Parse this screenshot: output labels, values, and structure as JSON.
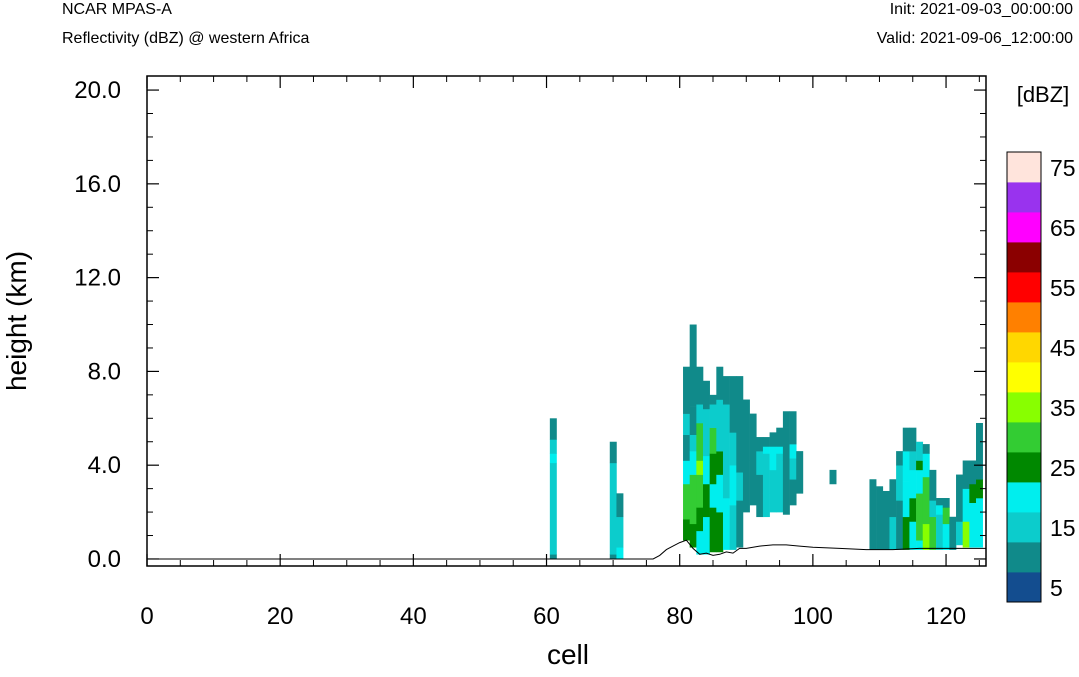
{
  "header": {
    "left_title": "NCAR MPAS-A",
    "left_subtitle": "Reflectivity (dBZ) @ western Africa",
    "right_init": "Init: 2021-09-03_00:00:00",
    "right_valid": "Valid: 2021-09-06_12:00:00"
  },
  "chart_data": {
    "type": "heatmap",
    "xlabel": "cell",
    "ylabel": "height (km)",
    "xlim": [
      0,
      126
    ],
    "ylim": [
      -0.3,
      20.6
    ],
    "xticks": [
      "0",
      "20",
      "40",
      "60",
      "80",
      "100",
      "120"
    ],
    "yticks": [
      "0.0",
      "4.0",
      "8.0",
      "12.0",
      "16.0",
      "20.0"
    ],
    "colorbar": {
      "title": "[dBZ]",
      "levels": [
        0,
        10,
        15,
        20,
        25,
        30,
        35,
        40,
        45,
        50,
        55,
        60,
        65,
        70,
        75
      ],
      "labels": [
        "5",
        "15",
        "25",
        "35",
        "45",
        "55",
        "65",
        "75"
      ],
      "colors": [
        "#134d8f",
        "#108a8a",
        "#0ccccc",
        "#00eeee",
        "#008800",
        "#33cc33",
        "#88ff00",
        "#ffff00",
        "#ffd700",
        "#ff8000",
        "#ff0000",
        "#8b0000",
        "#ff00ff",
        "#9933ee",
        "#ffe4dc"
      ]
    },
    "terrain": [
      [
        0,
        0
      ],
      [
        76,
        0
      ],
      [
        77,
        0.15
      ],
      [
        78,
        0.4
      ],
      [
        79,
        0.55
      ],
      [
        80,
        0.7
      ],
      [
        81,
        0.8
      ],
      [
        82,
        0.45
      ],
      [
        83,
        0.2
      ],
      [
        84,
        0.25
      ],
      [
        85,
        0.15
      ],
      [
        86,
        0.2
      ],
      [
        87,
        0.3
      ],
      [
        88,
        0.25
      ],
      [
        89,
        0.45
      ],
      [
        90,
        0.45
      ],
      [
        92,
        0.55
      ],
      [
        94,
        0.6
      ],
      [
        96,
        0.6
      ],
      [
        98,
        0.55
      ],
      [
        100,
        0.5
      ],
      [
        104,
        0.45
      ],
      [
        108,
        0.4
      ],
      [
        112,
        0.4
      ],
      [
        116,
        0.45
      ],
      [
        120,
        0.45
      ],
      [
        124,
        0.45
      ],
      [
        126,
        0.45
      ]
    ],
    "reflectivity_columns": [
      {
        "x": 61,
        "segs": [
          [
            0,
            0.2,
            1
          ],
          [
            0.2,
            4.1,
            2
          ],
          [
            4.1,
            4.5,
            3
          ],
          [
            4.5,
            5.1,
            2
          ],
          [
            5.1,
            6.0,
            1
          ]
        ]
      },
      {
        "x": 70,
        "segs": [
          [
            0,
            0.2,
            1
          ],
          [
            0.2,
            4.1,
            2
          ],
          [
            4.1,
            5.0,
            1
          ]
        ]
      },
      {
        "x": 71,
        "segs": [
          [
            0,
            0.5,
            3
          ],
          [
            0.5,
            1.8,
            2
          ],
          [
            1.8,
            2.8,
            1
          ]
        ]
      },
      {
        "x": 81,
        "segs": [
          [
            0.8,
            1.7,
            4
          ],
          [
            1.7,
            3.2,
            5
          ],
          [
            3.2,
            4.2,
            3
          ],
          [
            4.2,
            5.3,
            1
          ],
          [
            5.3,
            6.2,
            2
          ],
          [
            6.2,
            8.2,
            1
          ]
        ]
      },
      {
        "x": 82,
        "segs": [
          [
            0.5,
            1.5,
            4
          ],
          [
            1.5,
            3.6,
            5
          ],
          [
            3.6,
            4.6,
            3
          ],
          [
            4.6,
            5.3,
            2
          ],
          [
            5.3,
            6.5,
            1
          ],
          [
            6.5,
            8.2,
            1
          ],
          [
            8.2,
            10.0,
            1
          ]
        ]
      },
      {
        "x": 83,
        "segs": [
          [
            0.2,
            1.2,
            3
          ],
          [
            1.2,
            2.2,
            4
          ],
          [
            2.2,
            3.6,
            5
          ],
          [
            3.6,
            4.2,
            6
          ],
          [
            4.2,
            5.8,
            5
          ],
          [
            5.8,
            6.6,
            2
          ],
          [
            6.6,
            8.2,
            1
          ]
        ]
      },
      {
        "x": 84,
        "segs": [
          [
            0.2,
            1.8,
            3
          ],
          [
            1.8,
            3.2,
            4
          ],
          [
            3.2,
            4.4,
            3
          ],
          [
            4.4,
            6.4,
            2
          ],
          [
            6.4,
            7.6,
            1
          ]
        ]
      },
      {
        "x": 85,
        "segs": [
          [
            0.3,
            2.2,
            4
          ],
          [
            2.2,
            3.2,
            3
          ],
          [
            3.2,
            4.5,
            4
          ],
          [
            4.5,
            5.6,
            5
          ],
          [
            5.6,
            6.6,
            2
          ],
          [
            6.6,
            7.0,
            1
          ]
        ]
      },
      {
        "x": 86,
        "segs": [
          [
            0.3,
            2.0,
            4
          ],
          [
            2.0,
            3.6,
            3
          ],
          [
            3.6,
            4.6,
            4
          ],
          [
            4.6,
            6.8,
            2
          ],
          [
            6.8,
            8.2,
            1
          ]
        ]
      },
      {
        "x": 87,
        "segs": [
          [
            0.4,
            2.6,
            3
          ],
          [
            2.6,
            4.2,
            2
          ],
          [
            4.2,
            6.6,
            2
          ],
          [
            6.6,
            7.8,
            1
          ]
        ]
      },
      {
        "x": 88,
        "segs": [
          [
            0.4,
            2.3,
            2
          ],
          [
            2.3,
            4.0,
            3
          ],
          [
            4.0,
            5.4,
            2
          ],
          [
            5.4,
            7.8,
            1
          ]
        ]
      },
      {
        "x": 89,
        "segs": [
          [
            0.5,
            2.5,
            1
          ],
          [
            2.5,
            3.7,
            2
          ],
          [
            3.7,
            7.8,
            1
          ]
        ]
      },
      {
        "x": 90,
        "segs": [
          [
            2.0,
            4.2,
            1
          ],
          [
            4.2,
            6.8,
            1
          ]
        ]
      },
      {
        "x": 91,
        "segs": [
          [
            2.3,
            6.2,
            1
          ]
        ]
      },
      {
        "x": 92,
        "segs": [
          [
            1.8,
            3.6,
            1
          ],
          [
            3.6,
            4.6,
            2
          ],
          [
            4.6,
            5.2,
            1
          ]
        ]
      },
      {
        "x": 93,
        "segs": [
          [
            1.8,
            2.8,
            2
          ],
          [
            2.8,
            4.5,
            2
          ],
          [
            4.5,
            4.8,
            3
          ],
          [
            4.8,
            5.2,
            1
          ]
        ]
      },
      {
        "x": 94,
        "segs": [
          [
            2.0,
            3.8,
            2
          ],
          [
            3.8,
            4.8,
            3
          ],
          [
            4.8,
            5.4,
            1
          ]
        ]
      },
      {
        "x": 95,
        "segs": [
          [
            2.0,
            3.2,
            2
          ],
          [
            3.2,
            4.5,
            2
          ],
          [
            4.5,
            4.8,
            3
          ],
          [
            4.8,
            5.6,
            1
          ]
        ]
      },
      {
        "x": 96,
        "segs": [
          [
            1.9,
            4.2,
            1
          ],
          [
            4.2,
            5.6,
            1
          ],
          [
            5.6,
            6.3,
            1
          ]
        ]
      },
      {
        "x": 97,
        "segs": [
          [
            2.3,
            3.4,
            1
          ],
          [
            3.4,
            4.3,
            2
          ],
          [
            4.3,
            4.9,
            3
          ],
          [
            4.9,
            6.3,
            1
          ]
        ]
      },
      {
        "x": 98,
        "segs": [
          [
            2.8,
            4.6,
            1
          ]
        ]
      },
      {
        "x": 103,
        "segs": [
          [
            3.2,
            3.8,
            1
          ]
        ]
      },
      {
        "x": 109,
        "segs": [
          [
            0.4,
            3.4,
            1
          ]
        ]
      },
      {
        "x": 110,
        "segs": [
          [
            0.4,
            3.1,
            1
          ]
        ]
      },
      {
        "x": 111,
        "segs": [
          [
            0.4,
            2.9,
            1
          ]
        ]
      },
      {
        "x": 112,
        "segs": [
          [
            0.4,
            1.8,
            2
          ],
          [
            1.8,
            3.4,
            1
          ]
        ]
      },
      {
        "x": 113,
        "segs": [
          [
            0.4,
            2.5,
            1
          ],
          [
            2.5,
            4.0,
            2
          ],
          [
            4.0,
            4.6,
            1
          ]
        ]
      },
      {
        "x": 114,
        "segs": [
          [
            0.4,
            1.8,
            4
          ],
          [
            1.8,
            3.3,
            3
          ],
          [
            3.3,
            4.6,
            3
          ],
          [
            4.6,
            5.6,
            1
          ]
        ]
      },
      {
        "x": 115,
        "segs": [
          [
            0.4,
            1.6,
            3
          ],
          [
            1.6,
            2.6,
            4
          ],
          [
            2.6,
            3.8,
            3
          ],
          [
            3.8,
            4.6,
            2
          ],
          [
            4.6,
            5.6,
            1
          ]
        ]
      },
      {
        "x": 116,
        "segs": [
          [
            0.4,
            0.8,
            3
          ],
          [
            0.8,
            2.8,
            5
          ],
          [
            2.8,
            3.8,
            3
          ],
          [
            3.8,
            4.2,
            4
          ],
          [
            4.2,
            5.0,
            2
          ]
        ]
      },
      {
        "x": 117,
        "segs": [
          [
            0.4,
            1.5,
            6
          ],
          [
            1.5,
            3.5,
            5
          ],
          [
            3.5,
            4.5,
            3
          ],
          [
            4.5,
            4.9,
            1
          ]
        ]
      },
      {
        "x": 118,
        "segs": [
          [
            0.4,
            1.8,
            5
          ],
          [
            1.8,
            2.5,
            2
          ],
          [
            2.5,
            3.8,
            1
          ]
        ]
      },
      {
        "x": 119,
        "segs": [
          [
            0.4,
            1.9,
            2
          ],
          [
            1.9,
            2.3,
            3
          ],
          [
            2.3,
            2.6,
            1
          ]
        ]
      },
      {
        "x": 120,
        "segs": [
          [
            0.4,
            1.5,
            3
          ],
          [
            1.5,
            2.2,
            5
          ],
          [
            2.2,
            2.6,
            1
          ]
        ]
      },
      {
        "x": 121,
        "segs": [
          [
            0.4,
            1.8,
            1
          ]
        ]
      },
      {
        "x": 122,
        "segs": [
          [
            0.6,
            1.6,
            2
          ],
          [
            1.6,
            2.9,
            1
          ],
          [
            2.9,
            3.6,
            1
          ]
        ]
      },
      {
        "x": 123,
        "segs": [
          [
            0.5,
            1.6,
            6
          ],
          [
            1.6,
            3.0,
            3
          ],
          [
            3.0,
            4.2,
            1
          ]
        ]
      },
      {
        "x": 124,
        "segs": [
          [
            0.5,
            2.4,
            3
          ],
          [
            2.4,
            3.2,
            4
          ],
          [
            3.2,
            4.2,
            1
          ]
        ]
      },
      {
        "x": 125,
        "segs": [
          [
            0.5,
            2.6,
            3
          ],
          [
            2.6,
            3.4,
            4
          ],
          [
            3.4,
            5.8,
            1
          ]
        ]
      }
    ]
  }
}
